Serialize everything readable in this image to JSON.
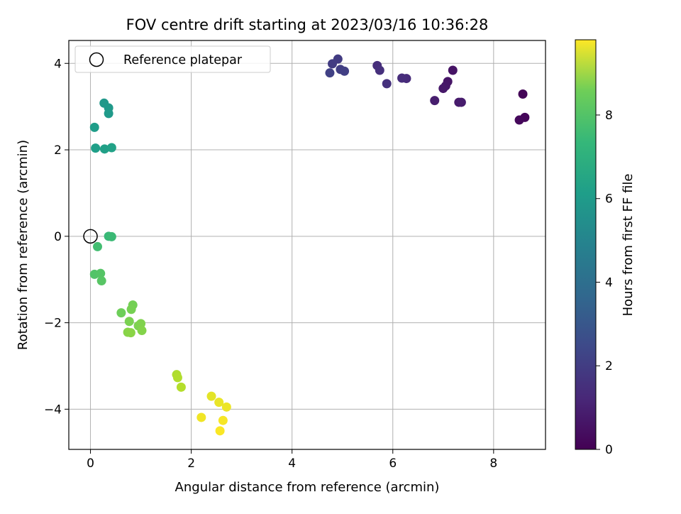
{
  "chart_data": {
    "type": "scatter",
    "title": "FOV centre drift starting at 2023/03/16 10:36:28",
    "xlabel": "Angular distance from reference (arcmin)",
    "ylabel": "Rotation from reference (arcmin)",
    "xlim": [
      -0.43,
      9.03
    ],
    "ylim": [
      -4.93,
      4.53
    ],
    "xticks": [
      0,
      2,
      4,
      6,
      8
    ],
    "yticks": [
      -4,
      -2,
      0,
      2,
      4
    ],
    "grid": true,
    "legend": {
      "placement": "top-left",
      "entries": [
        "Reference platepar"
      ]
    },
    "reference_point": {
      "x": 0,
      "y": 0,
      "label": "Reference platepar"
    },
    "colorbar": {
      "label": "Hours from first FF file",
      "colormap": "viridis",
      "range": [
        0,
        9.8
      ],
      "ticks": [
        0,
        2,
        4,
        6,
        8
      ]
    },
    "points": [
      {
        "x": 8.58,
        "y": 3.29,
        "c": 0.1
      },
      {
        "x": 8.62,
        "y": 2.75,
        "c": 0.15
      },
      {
        "x": 8.51,
        "y": 2.69,
        "c": 0.2
      },
      {
        "x": 7.19,
        "y": 3.84,
        "c": 0.5
      },
      {
        "x": 7.09,
        "y": 3.58,
        "c": 0.55
      },
      {
        "x": 7.05,
        "y": 3.48,
        "c": 0.6
      },
      {
        "x": 7.0,
        "y": 3.42,
        "c": 0.65
      },
      {
        "x": 7.31,
        "y": 3.1,
        "c": 0.7
      },
      {
        "x": 7.36,
        "y": 3.1,
        "c": 0.75
      },
      {
        "x": 6.83,
        "y": 3.14,
        "c": 0.8
      },
      {
        "x": 6.27,
        "y": 3.65,
        "c": 1.2
      },
      {
        "x": 6.18,
        "y": 3.66,
        "c": 1.25
      },
      {
        "x": 5.69,
        "y": 3.95,
        "c": 1.3
      },
      {
        "x": 5.74,
        "y": 3.84,
        "c": 1.35
      },
      {
        "x": 5.88,
        "y": 3.53,
        "c": 1.4
      },
      {
        "x": 4.91,
        "y": 4.1,
        "c": 1.7
      },
      {
        "x": 4.8,
        "y": 3.99,
        "c": 1.75
      },
      {
        "x": 4.96,
        "y": 3.86,
        "c": 1.8
      },
      {
        "x": 5.04,
        "y": 3.82,
        "c": 1.85
      },
      {
        "x": 4.75,
        "y": 3.78,
        "c": 1.9
      },
      {
        "x": 0.27,
        "y": 3.08,
        "c": 5.2
      },
      {
        "x": 0.36,
        "y": 2.97,
        "c": 5.25
      },
      {
        "x": 0.36,
        "y": 2.84,
        "c": 5.3
      },
      {
        "x": 0.08,
        "y": 2.52,
        "c": 5.4
      },
      {
        "x": 0.1,
        "y": 2.04,
        "c": 5.5
      },
      {
        "x": 0.28,
        "y": 2.02,
        "c": 5.55
      },
      {
        "x": 0.42,
        "y": 2.05,
        "c": 5.6
      },
      {
        "x": 0.36,
        "y": 0.0,
        "c": 6.6
      },
      {
        "x": 0.42,
        "y": -0.01,
        "c": 6.65
      },
      {
        "x": 0.14,
        "y": -0.24,
        "c": 6.8
      },
      {
        "x": 0.08,
        "y": -0.88,
        "c": 7.1
      },
      {
        "x": 0.2,
        "y": -0.86,
        "c": 7.15
      },
      {
        "x": 0.22,
        "y": -1.03,
        "c": 7.2
      },
      {
        "x": 0.61,
        "y": -1.77,
        "c": 7.6
      },
      {
        "x": 0.84,
        "y": -1.59,
        "c": 7.7
      },
      {
        "x": 0.81,
        "y": -1.69,
        "c": 7.75
      },
      {
        "x": 0.77,
        "y": -1.97,
        "c": 7.8
      },
      {
        "x": 0.95,
        "y": -2.07,
        "c": 7.85
      },
      {
        "x": 1.0,
        "y": -2.02,
        "c": 7.9
      },
      {
        "x": 1.02,
        "y": -2.18,
        "c": 7.95
      },
      {
        "x": 0.74,
        "y": -2.22,
        "c": 8.0
      },
      {
        "x": 0.8,
        "y": -2.23,
        "c": 8.05
      },
      {
        "x": 1.71,
        "y": -3.2,
        "c": 8.6
      },
      {
        "x": 1.73,
        "y": -3.27,
        "c": 8.65
      },
      {
        "x": 1.8,
        "y": -3.49,
        "c": 8.7
      },
      {
        "x": 2.4,
        "y": -3.7,
        "c": 9.4
      },
      {
        "x": 2.55,
        "y": -3.84,
        "c": 9.5
      },
      {
        "x": 2.7,
        "y": -3.95,
        "c": 9.55
      },
      {
        "x": 2.2,
        "y": -4.19,
        "c": 9.6
      },
      {
        "x": 2.63,
        "y": -4.26,
        "c": 9.7
      },
      {
        "x": 2.57,
        "y": -4.5,
        "c": 9.75
      }
    ]
  }
}
